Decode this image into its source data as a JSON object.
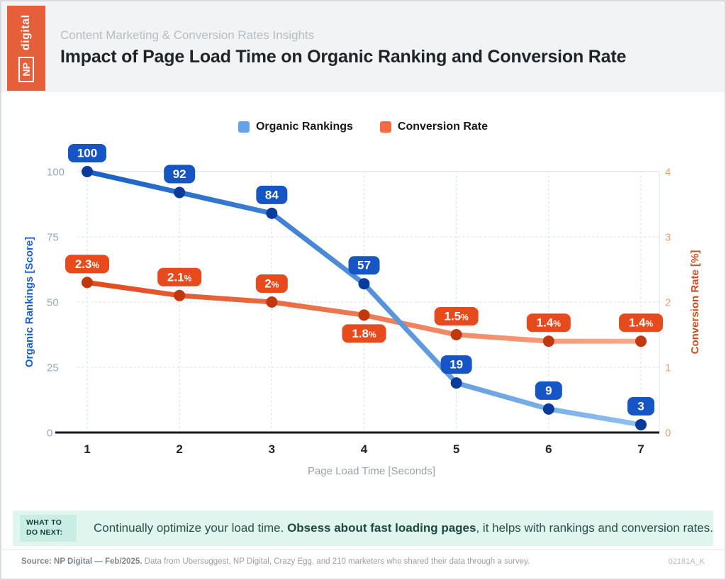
{
  "header": {
    "brand_np": "NP",
    "brand_digital": "digital",
    "subtitle": "Content Marketing & Conversion Rates Insights",
    "title": "Impact of Page Load Time on Organic Ranking and Conversion Rate"
  },
  "legend": {
    "items": [
      {
        "label": "Organic Rankings",
        "color": "#64a3e8"
      },
      {
        "label": "Conversion Rate",
        "color": "#f26b43"
      }
    ]
  },
  "chart_data": {
    "type": "line",
    "x": [
      1,
      2,
      3,
      4,
      5,
      6,
      7
    ],
    "xlabel": "Page Load Time [Seconds]",
    "grid": true,
    "legend_position": "top",
    "left_axis": {
      "title": "Organic Rankings [Score]",
      "ticks": [
        0,
        25,
        50,
        75,
        100
      ],
      "range": [
        0,
        100
      ],
      "tick_color": "#92a8c6",
      "title_color": "#1b5fc6"
    },
    "right_axis": {
      "title": "Conversion Rate [%]",
      "ticks": [
        0,
        1,
        2,
        3,
        4
      ],
      "range": [
        0,
        4
      ],
      "tick_color": "#eb9e71",
      "title_color": "#d24b1e"
    },
    "series": [
      {
        "name": "Conversion Rate",
        "axis": "right",
        "values": [
          2.3,
          2.1,
          2.0,
          1.8,
          1.5,
          1.4,
          1.4
        ],
        "labels": [
          "2.3%",
          "2.1%",
          "2%",
          "1.8%",
          "1.5%",
          "1.4%",
          "1.4%"
        ],
        "label_below_indices": [
          3
        ],
        "color_start": "#e04b1d",
        "color_end": "#f9ab8d",
        "dot_color": "#c2380e",
        "label_bg": "#e74a1d"
      },
      {
        "name": "Organic Rankings",
        "axis": "left",
        "values": [
          100,
          92,
          84,
          57,
          19,
          9,
          3
        ],
        "labels": [
          "100",
          "92",
          "84",
          "57",
          "19",
          "9",
          "3"
        ],
        "label_below_indices": [],
        "color_start": "#1760c4",
        "color_end": "#8fc0ef",
        "dot_color": "#0a3a9a",
        "label_bg": "#1656c4"
      }
    ],
    "x_tick_color": "#23272b",
    "axis_line_color": "#16191d",
    "grid_dotted_color": "#dfe8f0",
    "grid_solid_color": "#e3e7ea"
  },
  "callout": {
    "label": "WHAT TO DO NEXT:",
    "text_before": "Continually optimize your load time. ",
    "text_bold": "Obsess about fast loading pages",
    "text_after": ", it helps with rankings and conversion rates."
  },
  "footer": {
    "source_bold": "Source: NP Digital — Feb/2025.",
    "source_rest": " Data from Ubersuggest, NP Digital, Crazy Egg, and 210 marketers who shared their data through a survey.",
    "code": "02181A_K"
  }
}
